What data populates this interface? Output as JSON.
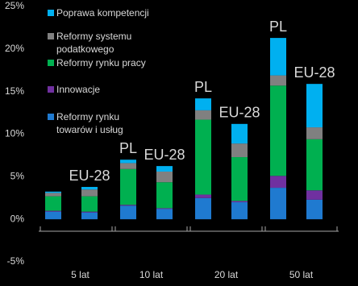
{
  "chart_data": {
    "type": "stacked_bar",
    "groups": [
      "5 lat",
      "10 lat",
      "20 lat",
      "50 lat"
    ],
    "bar_labels": [
      null,
      "EU-28",
      "PL",
      "EU-28",
      "PL",
      "EU-28",
      "PL",
      "EU-28"
    ],
    "series": [
      {
        "name": "Reformy rynku\ntowarów i usług",
        "color": "#1f7ad0",
        "values": [
          0.9,
          0.8,
          1.6,
          1.2,
          2.5,
          2.0,
          3.7,
          2.3
        ]
      },
      {
        "name": "Innowacje",
        "color": "#7030a0",
        "values": [
          0.1,
          0.1,
          0.1,
          0.1,
          0.4,
          0.15,
          1.4,
          1.1
        ]
      },
      {
        "name": "Reformy rynku pracy",
        "color": "#00b050",
        "values": [
          1.7,
          1.8,
          4.2,
          3.05,
          8.8,
          5.15,
          10.6,
          6.0
        ]
      },
      {
        "name": "Reformy systemu\npodatkowego",
        "color": "#808080",
        "values": [
          0.4,
          0.8,
          0.7,
          1.25,
          1.1,
          1.6,
          1.2,
          1.4
        ]
      },
      {
        "name": "Poprawa kompetencji",
        "color": "#00b0f0",
        "values": [
          0.15,
          0.3,
          0.4,
          0.65,
          1.4,
          2.3,
          4.4,
          5.1
        ]
      }
    ],
    "ylim": [
      -5,
      25
    ],
    "yticks": [
      {
        "value": -5,
        "label": "-5%"
      },
      {
        "value": 0,
        "label": "0%"
      },
      {
        "value": 5,
        "label": "5%"
      },
      {
        "value": 10,
        "label": "10%"
      },
      {
        "value": 15,
        "label": "15%"
      },
      {
        "value": 20,
        "label": "20%"
      },
      {
        "value": 25,
        "label": "25%"
      }
    ],
    "legend": "top-left"
  }
}
